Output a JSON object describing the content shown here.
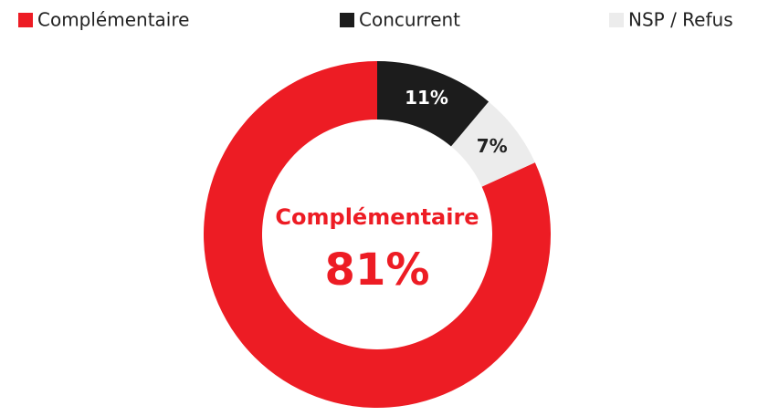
{
  "chart_data": {
    "type": "donut",
    "categories": [
      "Complémentaire",
      "Concurrent",
      "NSP / Refus"
    ],
    "values": [
      81,
      11,
      7
    ],
    "value_labels": [
      "81%",
      "11%",
      "7%"
    ],
    "colors": [
      "#ed1c24",
      "#1c1c1c",
      "#ececec"
    ],
    "legend": "top"
  }
}
